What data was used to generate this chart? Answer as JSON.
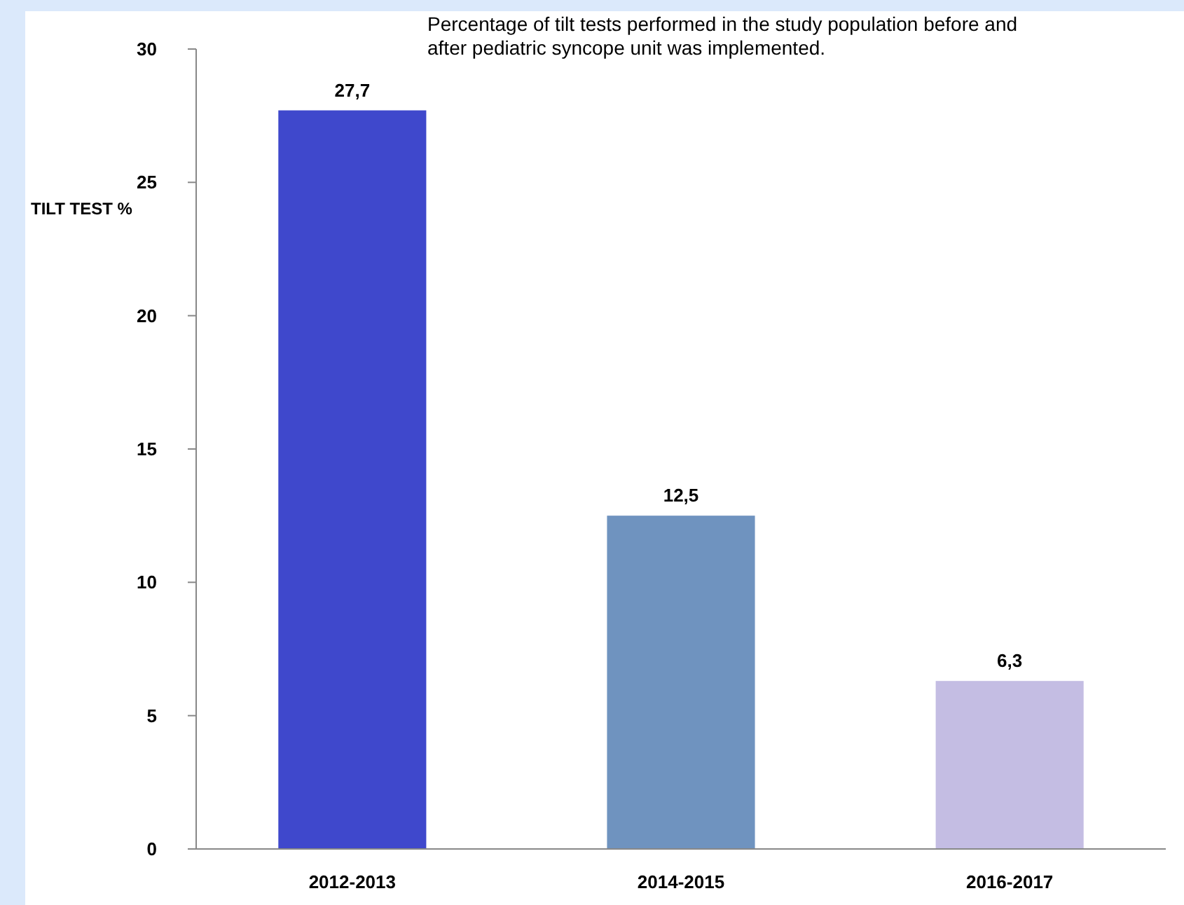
{
  "chart_data": {
    "type": "bar",
    "title": "Percentage of tilt tests performed in the study population before and after pediatric syncope unit was implemented.",
    "ylabel": "TILT TEST %",
    "categories": [
      "2012-2013",
      "2014-2015",
      "2016-2017"
    ],
    "values": [
      27.7,
      12.5,
      6.3
    ],
    "colors": [
      "#3f48cc",
      "#6f93bf",
      "#c4bde3"
    ],
    "value_labels": [
      "27,7",
      "12,5",
      "6,3"
    ],
    "ylim": [
      0,
      30
    ],
    "yticks": [
      0,
      5,
      10,
      15,
      20,
      25,
      30
    ],
    "grid": false
  }
}
